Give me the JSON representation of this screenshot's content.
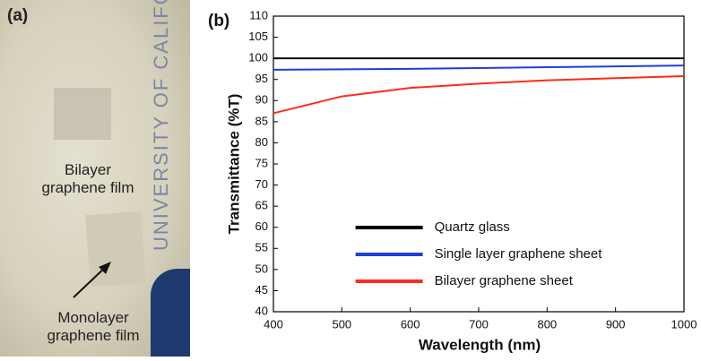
{
  "panel_a": {
    "label": "(a)",
    "bilayer_label": [
      "Bilayer",
      "graphene film"
    ],
    "monolayer_label": [
      "Monolayer",
      "graphene film"
    ],
    "watermark": "UNIVERSITY OF CALIFOR"
  },
  "chart_data": {
    "type": "line",
    "panel_label": "(b)",
    "x_label": "Wavelength (nm)",
    "y_label": "Transmittance (%T)",
    "x": [
      400,
      500,
      600,
      700,
      800,
      900,
      1000
    ],
    "series": [
      {
        "name": "Quartz glass",
        "color": "#000000",
        "values": [
          100,
          100,
          100,
          100,
          100,
          100,
          100
        ]
      },
      {
        "name": "Single layer graphene sheet",
        "color": "#1f3fd6",
        "values": [
          97.3,
          97.4,
          97.5,
          97.7,
          97.9,
          98.1,
          98.3
        ]
      },
      {
        "name": "Bilayer graphene sheet",
        "color": "#ff2a1a",
        "values": [
          87,
          91,
          93,
          94,
          94.8,
          95.3,
          95.8
        ]
      }
    ],
    "xlim": [
      400,
      1000
    ],
    "xticks": [
      400,
      500,
      600,
      700,
      800,
      900,
      1000
    ],
    "ylim": [
      40,
      110
    ],
    "yticks": [
      40,
      45,
      50,
      55,
      60,
      65,
      70,
      75,
      80,
      85,
      90,
      95,
      100,
      105,
      110
    ],
    "legend": "lower center",
    "grid": false
  }
}
